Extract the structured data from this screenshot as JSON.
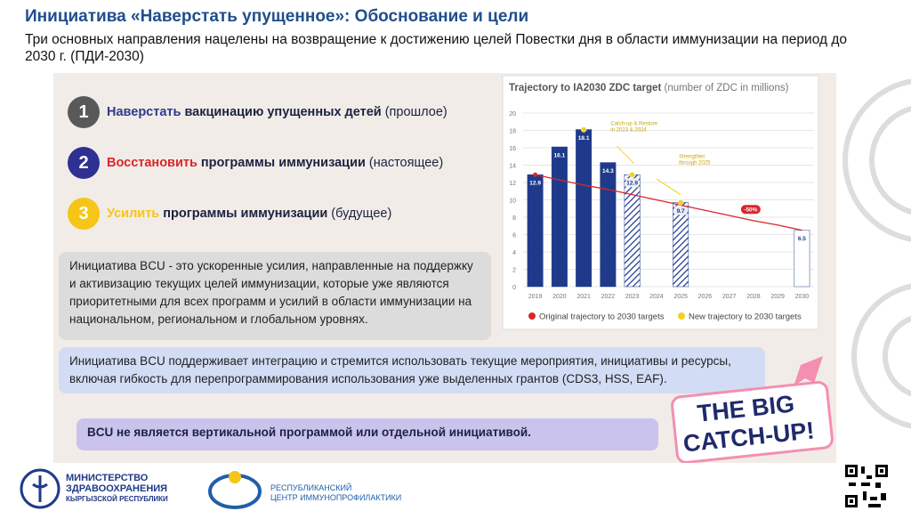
{
  "header": {
    "title": "Инициатива «Наверстать упущенное»: Обоснование и цели",
    "subtitle": "Три основных направления нацелены на возвращение к достижению целей Повестки дня в области иммунизации на период до 2030 г. (ПДИ-2030)"
  },
  "items": [
    {
      "number": "1",
      "color": "#595959",
      "keyword_color": "#2e3a8c",
      "keyword": "Наверстать",
      "text": "вакцинацию упущенных детей",
      "note": "(прошлое)"
    },
    {
      "number": "2",
      "color": "#2e3192",
      "keyword_color": "#d9262b",
      "keyword": "Восстановить",
      "text": "программы иммунизации",
      "note": "(настоящее)"
    },
    {
      "number": "3",
      "color": "#f5c518",
      "keyword_color": "#f5c518",
      "keyword": "Усилить",
      "text": "программы иммунизации",
      "note": "(будущее)"
    }
  ],
  "boxes": [
    "Инициатива BCU - это ускоренные усилия, направленные на поддержку и активизацию текущих целей иммунизации, которые уже являются приоритетными для всех программ и усилий в области иммунизации на национальном, региональном и глобальном уровнях.",
    "Инициатива BCU поддерживает интеграцию и стремится использовать текущие мероприятия, инициативы и ресурсы, включая гибкость для перепрограммирования использования уже выделенных грантов (CDS3, HSS, EAF).",
    "BCU не является вертикальной программой или отдельной инициативой."
  ],
  "sticker": [
    "THE BIG",
    "CATCH-UP!"
  ],
  "footer": {
    "ministry": [
      "МИНИСТЕРСТВО",
      "ЗДРАВООХРАНЕНИЯ",
      "КЫРГЫЗСКОЙ РЕСПУБЛИКИ"
    ],
    "center": [
      "РЕСПУБЛИКАНСКИЙ",
      "ЦЕНТР ИММУНОПРОФИЛАКТИКИ"
    ]
  },
  "chart_data": {
    "type": "bar",
    "title": "Trajectory to IA2030 ZDC target",
    "subtitle": "(number of ZDC in millions)",
    "categories": [
      "2019",
      "2020",
      "2021",
      "2022",
      "2023",
      "2024",
      "2025",
      "2026",
      "2027",
      "2028",
      "2029",
      "2030"
    ],
    "values": [
      12.9,
      16.1,
      18.1,
      14.3,
      12.9,
      null,
      9.7,
      null,
      null,
      null,
      null,
      6.5
    ],
    "bar_style": [
      "solid",
      "solid",
      "solid",
      "solid",
      "hatched",
      null,
      "hatched",
      null,
      null,
      null,
      null,
      "outline"
    ],
    "color": "#1f3a8a",
    "series": [
      {
        "name": "Original trajectory to 2030 targets",
        "color": "#d9262b",
        "values": [
          12.9,
          12.3,
          11.7,
          11.2,
          10.6,
          10.0,
          9.4,
          8.8,
          8.2,
          7.6,
          7.1,
          6.5
        ]
      },
      {
        "name": "New trajectory to 2030 targets",
        "color": "#f2d21b",
        "values": [
          null,
          null,
          18.1,
          null,
          12.9,
          null,
          9.7,
          null,
          null,
          null,
          null,
          null
        ]
      }
    ],
    "annotations": [
      [
        "Catch-up & Restore",
        "in 2023 & 2024"
      ],
      [
        "Strengthen",
        "through 2025"
      ],
      "-50%"
    ],
    "ylim": [
      0,
      20
    ],
    "yticks": [
      0,
      2,
      4,
      6,
      8,
      10,
      12,
      14,
      16,
      18,
      20
    ],
    "grid": true
  }
}
